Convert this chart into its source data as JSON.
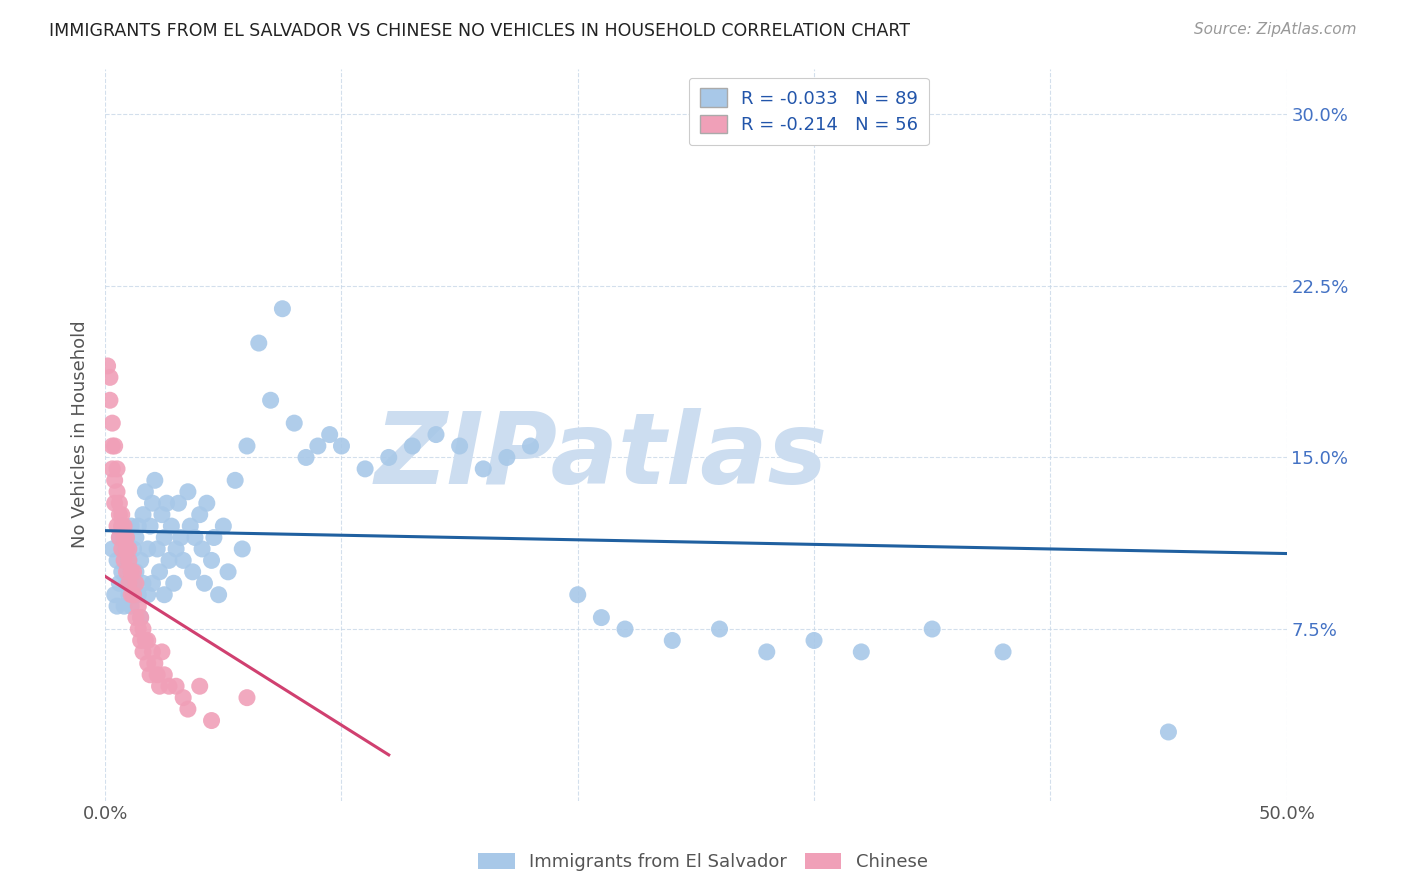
{
  "title": "IMMIGRANTS FROM EL SALVADOR VS CHINESE NO VEHICLES IN HOUSEHOLD CORRELATION CHART",
  "source": "Source: ZipAtlas.com",
  "ylabel": "No Vehicles in Household",
  "yticks": [
    "7.5%",
    "15.0%",
    "22.5%",
    "30.0%"
  ],
  "ytick_vals": [
    0.075,
    0.15,
    0.225,
    0.3
  ],
  "xlim": [
    0.0,
    0.5
  ],
  "ylim": [
    0.0,
    0.32
  ],
  "legend_r1": "R = -0.033",
  "legend_n1": "N = 89",
  "legend_r2": "R = -0.214",
  "legend_n2": "N = 56",
  "color_blue": "#a8c8e8",
  "color_pink": "#f0a0b8",
  "color_line_blue": "#2060a0",
  "color_line_pink": "#d04070",
  "watermark": "ZIPatlas",
  "watermark_color": "#ccddf0",
  "blue_scatter_x": [
    0.003,
    0.004,
    0.005,
    0.005,
    0.006,
    0.006,
    0.007,
    0.007,
    0.008,
    0.008,
    0.009,
    0.009,
    0.01,
    0.01,
    0.011,
    0.011,
    0.012,
    0.012,
    0.013,
    0.013,
    0.014,
    0.014,
    0.015,
    0.015,
    0.016,
    0.016,
    0.017,
    0.018,
    0.018,
    0.019,
    0.02,
    0.02,
    0.021,
    0.022,
    0.023,
    0.024,
    0.025,
    0.025,
    0.026,
    0.027,
    0.028,
    0.029,
    0.03,
    0.031,
    0.032,
    0.033,
    0.035,
    0.036,
    0.037,
    0.038,
    0.04,
    0.041,
    0.042,
    0.043,
    0.045,
    0.046,
    0.048,
    0.05,
    0.052,
    0.055,
    0.058,
    0.06,
    0.065,
    0.07,
    0.075,
    0.08,
    0.085,
    0.09,
    0.095,
    0.1,
    0.11,
    0.12,
    0.13,
    0.14,
    0.15,
    0.16,
    0.17,
    0.18,
    0.2,
    0.21,
    0.22,
    0.24,
    0.26,
    0.28,
    0.3,
    0.32,
    0.35,
    0.38,
    0.45
  ],
  "blue_scatter_y": [
    0.11,
    0.09,
    0.105,
    0.085,
    0.115,
    0.095,
    0.1,
    0.12,
    0.085,
    0.11,
    0.095,
    0.115,
    0.105,
    0.09,
    0.12,
    0.085,
    0.11,
    0.095,
    0.115,
    0.1,
    0.09,
    0.12,
    0.105,
    0.08,
    0.125,
    0.095,
    0.135,
    0.11,
    0.09,
    0.12,
    0.13,
    0.095,
    0.14,
    0.11,
    0.1,
    0.125,
    0.115,
    0.09,
    0.13,
    0.105,
    0.12,
    0.095,
    0.11,
    0.13,
    0.115,
    0.105,
    0.135,
    0.12,
    0.1,
    0.115,
    0.125,
    0.11,
    0.095,
    0.13,
    0.105,
    0.115,
    0.09,
    0.12,
    0.1,
    0.14,
    0.11,
    0.155,
    0.2,
    0.175,
    0.215,
    0.165,
    0.15,
    0.155,
    0.16,
    0.155,
    0.145,
    0.15,
    0.155,
    0.16,
    0.155,
    0.145,
    0.15,
    0.155,
    0.09,
    0.08,
    0.075,
    0.07,
    0.075,
    0.065,
    0.07,
    0.065,
    0.075,
    0.065,
    0.03
  ],
  "pink_scatter_x": [
    0.001,
    0.002,
    0.002,
    0.003,
    0.003,
    0.003,
    0.004,
    0.004,
    0.004,
    0.005,
    0.005,
    0.005,
    0.006,
    0.006,
    0.006,
    0.007,
    0.007,
    0.007,
    0.008,
    0.008,
    0.008,
    0.009,
    0.009,
    0.009,
    0.01,
    0.01,
    0.01,
    0.011,
    0.011,
    0.012,
    0.012,
    0.013,
    0.013,
    0.014,
    0.014,
    0.015,
    0.015,
    0.016,
    0.016,
    0.017,
    0.018,
    0.018,
    0.019,
    0.02,
    0.021,
    0.022,
    0.023,
    0.024,
    0.025,
    0.027,
    0.03,
    0.033,
    0.035,
    0.04,
    0.045,
    0.06
  ],
  "pink_scatter_y": [
    0.19,
    0.185,
    0.175,
    0.155,
    0.165,
    0.145,
    0.14,
    0.155,
    0.13,
    0.145,
    0.135,
    0.12,
    0.13,
    0.115,
    0.125,
    0.12,
    0.11,
    0.125,
    0.115,
    0.105,
    0.12,
    0.11,
    0.1,
    0.115,
    0.105,
    0.095,
    0.11,
    0.1,
    0.09,
    0.1,
    0.09,
    0.08,
    0.095,
    0.085,
    0.075,
    0.08,
    0.07,
    0.075,
    0.065,
    0.07,
    0.06,
    0.07,
    0.055,
    0.065,
    0.06,
    0.055,
    0.05,
    0.065,
    0.055,
    0.05,
    0.05,
    0.045,
    0.04,
    0.05,
    0.035,
    0.045
  ],
  "blue_line_x": [
    0.0,
    0.5
  ],
  "blue_line_y": [
    0.118,
    0.108
  ],
  "pink_line_x": [
    0.0,
    0.12
  ],
  "pink_line_y": [
    0.098,
    0.02
  ]
}
